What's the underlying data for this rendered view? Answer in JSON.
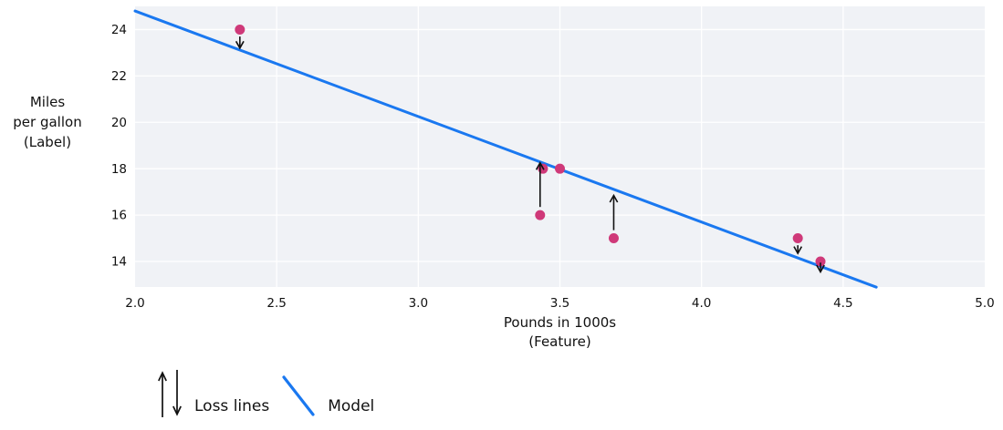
{
  "chart_data": {
    "type": "scatter",
    "title": "",
    "xlabel": "Pounds in 1000s\n(Feature)",
    "ylabel": "Miles\nper gallon\n(Label)",
    "xlim": [
      2.0,
      5.0
    ],
    "ylim": [
      12.9,
      25.0
    ],
    "grid": true,
    "legend_position": "bottom-left",
    "xticks": [
      2.0,
      2.5,
      3.0,
      3.5,
      4.0,
      4.5,
      5.0
    ],
    "xtick_labels": [
      "2.0",
      "2.5",
      "3.0",
      "3.5",
      "4.0",
      "4.5",
      "5.0"
    ],
    "yticks": [
      14,
      16,
      18,
      20,
      22,
      24
    ],
    "ytick_labels": [
      "14",
      "16",
      "18",
      "20",
      "22",
      "24"
    ],
    "points": [
      {
        "x": 2.37,
        "y": 24
      },
      {
        "x": 3.43,
        "y": 16
      },
      {
        "x": 3.44,
        "y": 18
      },
      {
        "x": 3.5,
        "y": 18
      },
      {
        "x": 3.69,
        "y": 15
      },
      {
        "x": 4.34,
        "y": 15
      },
      {
        "x": 4.42,
        "y": 14
      }
    ],
    "model_line": {
      "slope": -4.55,
      "intercept": 33.9,
      "x_start": 2.0,
      "x_end": 4.617
    },
    "loss_arrows": [
      {
        "x": 2.37,
        "from_y": 23.7,
        "to_y": 23.2,
        "direction": "down"
      },
      {
        "x": 3.43,
        "from_y": 16.35,
        "to_y": 18.25,
        "direction": "up"
      },
      {
        "x": 3.69,
        "from_y": 15.35,
        "to_y": 16.85,
        "direction": "up"
      },
      {
        "x": 4.34,
        "from_y": 14.7,
        "to_y": 14.35,
        "direction": "down"
      },
      {
        "x": 4.42,
        "from_y": 13.95,
        "to_y": 13.55,
        "direction": "down"
      }
    ],
    "legend": [
      {
        "label": "Loss lines",
        "symbol": "arrows"
      },
      {
        "label": "Model",
        "symbol": "line"
      }
    ],
    "colors": {
      "point": "#cf3979",
      "model_line": "#1a78f0",
      "arrow": "#111111",
      "plot_background": "#f0f2f6",
      "gridline": "#ffffff",
      "text": "#111111"
    }
  }
}
